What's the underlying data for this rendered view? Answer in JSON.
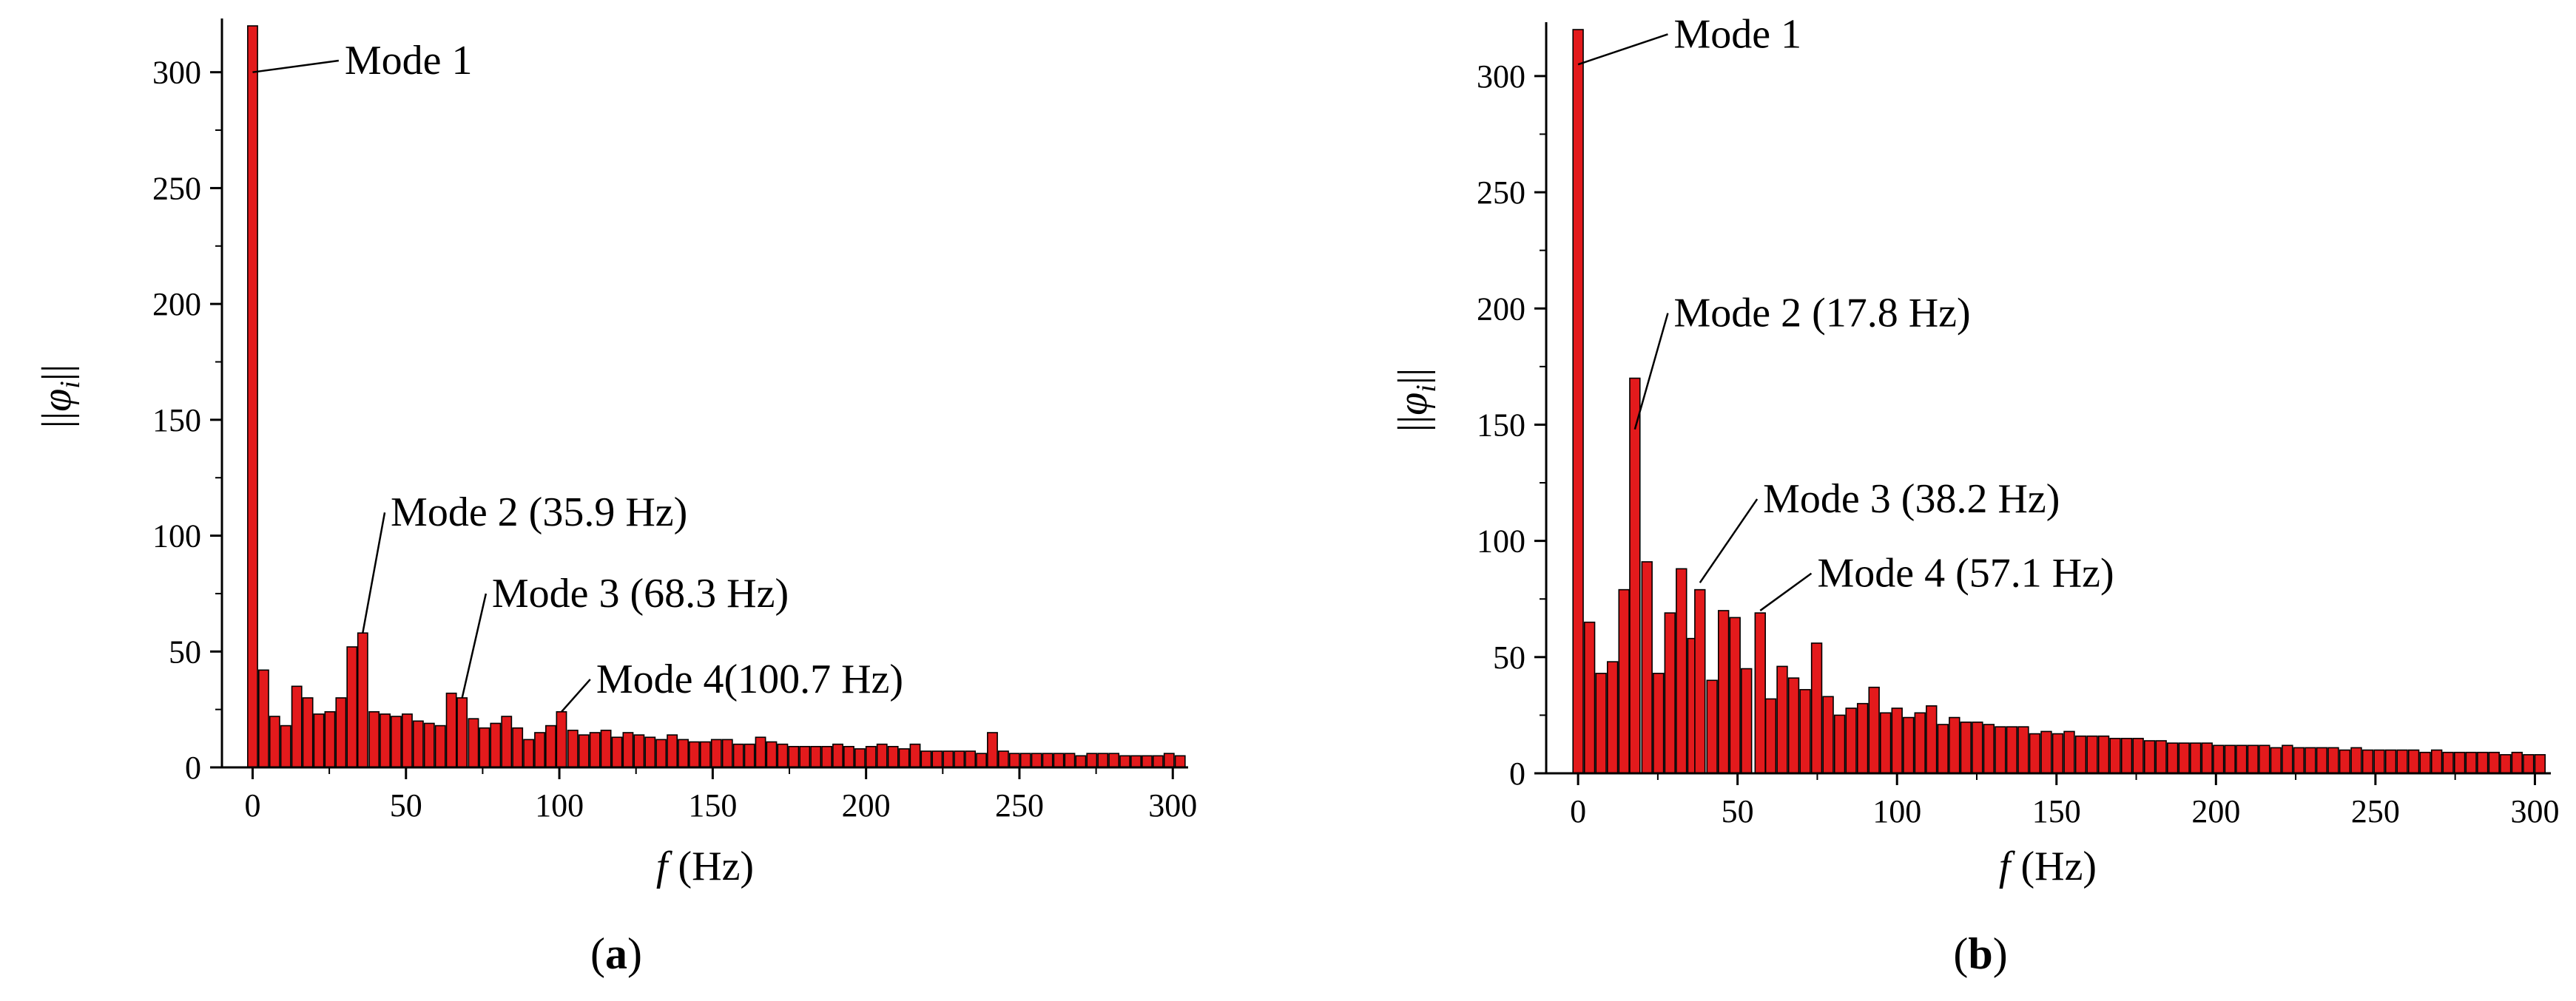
{
  "chart_data": [
    {
      "type": "bar",
      "panel_label": "(a)",
      "xlabel_var": "f",
      "xlabel_unit": "(Hz)",
      "ylabel": "||φi||",
      "xlim": [
        -10,
        305
      ],
      "ylim": [
        0,
        320
      ],
      "xticks": [
        0,
        50,
        100,
        150,
        200,
        250,
        300
      ],
      "yticks": [
        0,
        50,
        100,
        150,
        200,
        250,
        300
      ],
      "bar_width": 3.2,
      "bar_color": "#e31a1c",
      "x": [
        0,
        3.6,
        7.2,
        10.8,
        14.4,
        18,
        21.6,
        25.2,
        28.8,
        32.4,
        35.9,
        39.6,
        43.2,
        46.8,
        50.4,
        54,
        57.6,
        61.2,
        64.8,
        68.3,
        72,
        75.6,
        79.2,
        82.8,
        86.4,
        90,
        93.6,
        97.2,
        100.7,
        104.4,
        108,
        111.6,
        115.2,
        118.8,
        122.4,
        126,
        129.6,
        133.2,
        136.8,
        140.4,
        144,
        147.6,
        151.2,
        154.8,
        158.4,
        162,
        165.6,
        169.2,
        172.8,
        176.4,
        180,
        183.6,
        187.2,
        190.8,
        194.4,
        198,
        201.6,
        205.2,
        208.8,
        212.4,
        216,
        219.6,
        223.2,
        226.8,
        230.4,
        234,
        237.6,
        241.2,
        244.8,
        248.4,
        252,
        255.6,
        259.2,
        262.8,
        266.4,
        270,
        273.6,
        277.2,
        280.8,
        284.4,
        288,
        291.6,
        295.2,
        298.8,
        302.4
      ],
      "values": [
        320,
        42,
        22,
        18,
        35,
        30,
        23,
        24,
        30,
        52,
        58,
        24,
        23,
        22,
        23,
        20,
        19,
        18,
        32,
        30,
        21,
        17,
        19,
        22,
        17,
        12,
        15,
        18,
        24,
        16,
        14,
        15,
        16,
        13,
        15,
        14,
        13,
        12,
        14,
        12,
        11,
        11,
        12,
        12,
        10,
        10,
        13,
        11,
        10,
        9,
        9,
        9,
        9,
        10,
        9,
        8,
        9,
        10,
        9,
        8,
        10,
        7,
        7,
        7,
        7,
        7,
        6,
        15,
        7,
        6,
        6,
        6,
        6,
        6,
        6,
        5,
        6,
        6,
        6,
        5,
        5,
        5,
        5,
        6,
        5
      ],
      "annotations": [
        {
          "text": "Mode 1",
          "x": 0,
          "y": 300,
          "text_x": 30,
          "text_y": 305
        },
        {
          "text": "Mode 2 (35.9 Hz)",
          "x": 35.9,
          "y": 58,
          "text_x": 45,
          "text_y": 110
        },
        {
          "text": "Mode 3 (68.3 Hz)",
          "x": 68.3,
          "y": 30,
          "text_x": 78,
          "text_y": 75
        },
        {
          "text": "Mode 4(100.7 Hz)",
          "x": 100.7,
          "y": 24,
          "text_x": 112,
          "text_y": 38
        }
      ]
    },
    {
      "type": "bar",
      "panel_label": "(b)",
      "xlabel_var": "f",
      "xlabel_unit": "(Hz)",
      "ylabel": "||φi||",
      "xlim": [
        -10,
        305
      ],
      "ylim": [
        0,
        320
      ],
      "xticks": [
        0,
        50,
        100,
        150,
        200,
        250,
        300
      ],
      "yticks": [
        0,
        50,
        100,
        150,
        200,
        250,
        300
      ],
      "bar_width": 3.2,
      "bar_color": "#e31a1c",
      "x": [
        0,
        3.6,
        7.2,
        10.8,
        14.4,
        17.8,
        21.6,
        25.2,
        28.8,
        32.4,
        36,
        38.2,
        42,
        45.6,
        49.2,
        52.8,
        57.1,
        60.4,
        64,
        67.6,
        71.2,
        74.8,
        78.4,
        82,
        85.6,
        89.2,
        92.8,
        96.4,
        100,
        103.6,
        107.2,
        110.8,
        114.4,
        118,
        121.6,
        125.2,
        128.8,
        132.4,
        136,
        139.6,
        143.2,
        146.8,
        150.4,
        154,
        157.6,
        161.2,
        164.8,
        168.4,
        172,
        175.6,
        179.2,
        182.8,
        186.4,
        190,
        193.6,
        197.2,
        200.8,
        204.4,
        208,
        211.6,
        215.2,
        218.8,
        222.4,
        226,
        229.6,
        233.2,
        236.8,
        240.4,
        244,
        247.6,
        251.2,
        254.8,
        258.4,
        262,
        265.6,
        269.2,
        272.8,
        276.4,
        280,
        283.6,
        287.2,
        290.8,
        294.4,
        298,
        301.6
      ],
      "values": [
        320,
        65,
        43,
        48,
        79,
        170,
        91,
        43,
        69,
        88,
        58,
        79,
        40,
        70,
        67,
        45,
        69,
        32,
        46,
        41,
        36,
        56,
        33,
        25,
        28,
        30,
        37,
        26,
        28,
        24,
        26,
        29,
        21,
        24,
        22,
        22,
        21,
        20,
        20,
        20,
        17,
        18,
        17,
        18,
        16,
        16,
        16,
        15,
        15,
        15,
        14,
        14,
        13,
        13,
        13,
        13,
        12,
        12,
        12,
        12,
        12,
        11,
        12,
        11,
        11,
        11,
        11,
        10,
        11,
        10,
        10,
        10,
        10,
        10,
        9,
        10,
        9,
        9,
        9,
        9,
        9,
        8,
        9,
        8,
        8
      ],
      "annotations": [
        {
          "text": "Mode 1",
          "x": 0,
          "y": 305,
          "text_x": 30,
          "text_y": 318
        },
        {
          "text": "Mode 2 (17.8 Hz)",
          "x": 17.8,
          "y": 148,
          "text_x": 30,
          "text_y": 198
        },
        {
          "text": "Mode 3 (38.2 Hz)",
          "x": 38.2,
          "y": 82,
          "text_x": 58,
          "text_y": 118
        },
        {
          "text": "Mode 4 (57.1 Hz)",
          "x": 57.1,
          "y": 70,
          "text_x": 75,
          "text_y": 86
        }
      ]
    }
  ]
}
